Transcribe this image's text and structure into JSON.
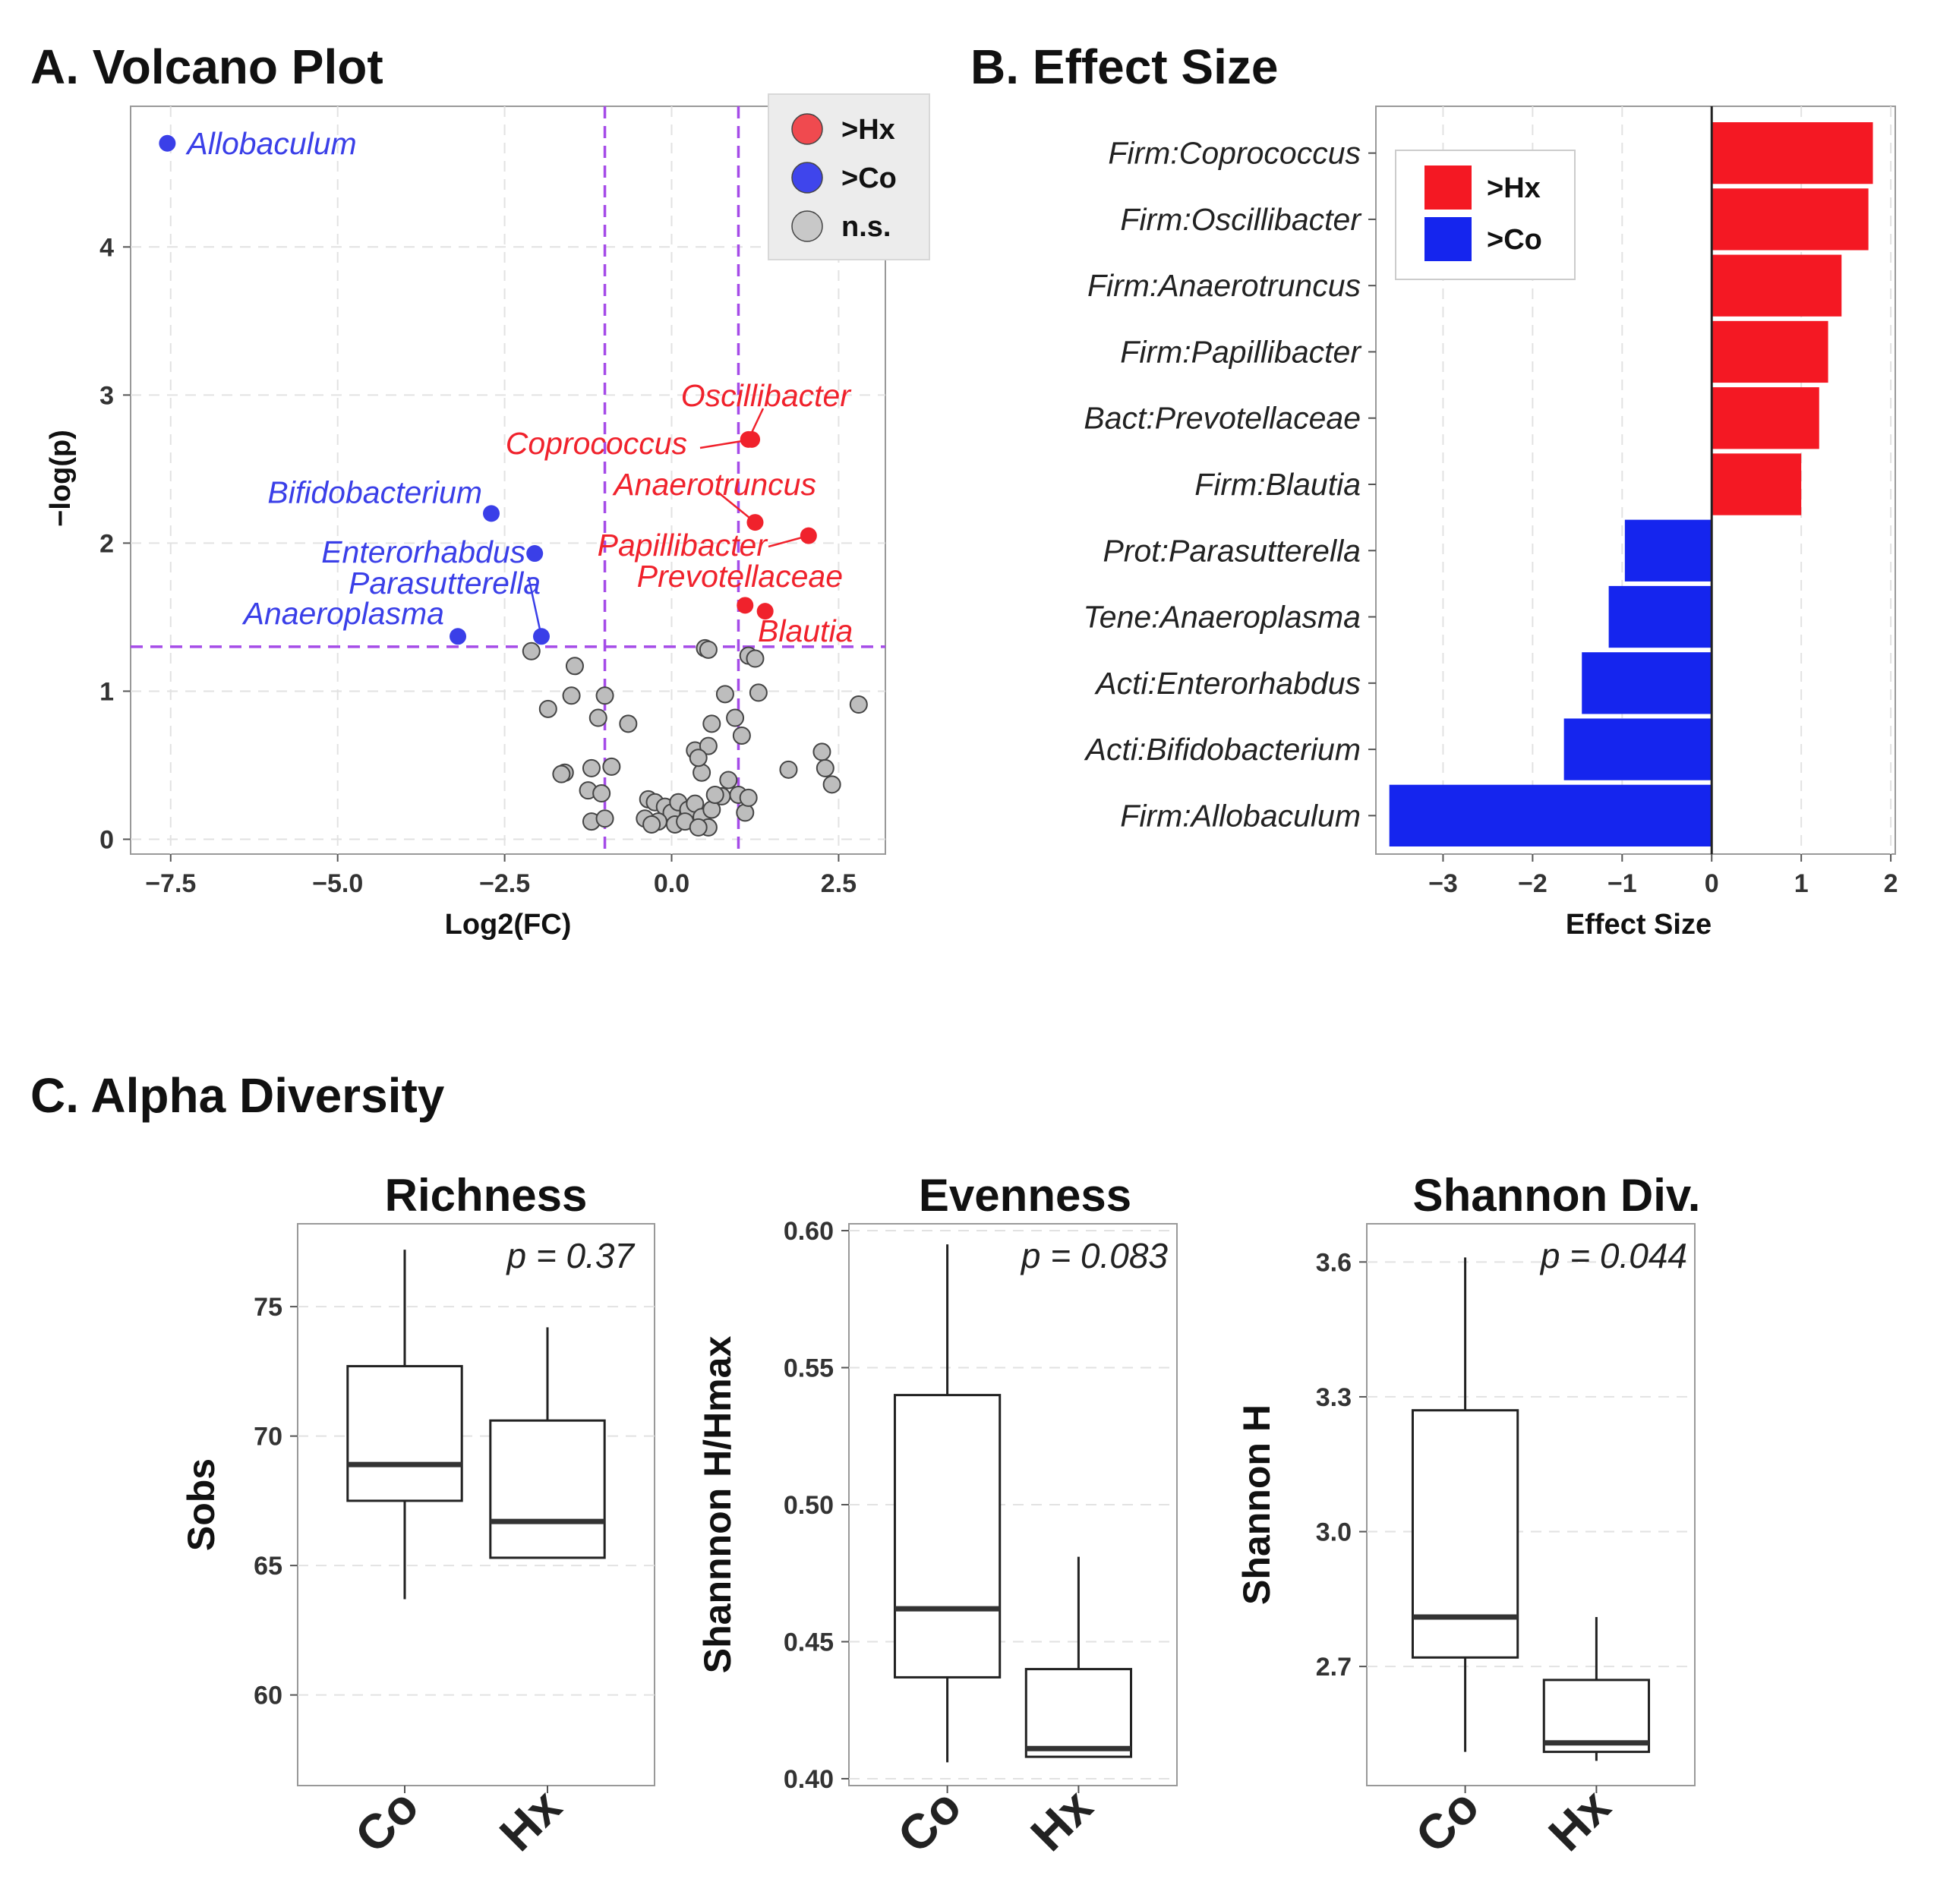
{
  "chart_data": [
    {
      "id": "volcano",
      "type": "scatter",
      "title": "A. Volcano Plot",
      "xlabel": "Log2(FC)",
      "ylabel": "−log(p)",
      "xlim": [
        -8.1,
        3.2
      ],
      "ylim": [
        -0.1,
        4.95
      ],
      "xticks": [
        -7.5,
        -5.0,
        -2.5,
        0.0,
        2.5
      ],
      "xtick_labels": [
        "−7.5",
        "−5.0",
        "−2.5",
        "0.0",
        "2.5"
      ],
      "yticks": [
        0,
        1,
        2,
        3,
        4
      ],
      "ytick_labels": [
        "0",
        "1",
        "2",
        "3",
        "4"
      ],
      "thresholds": {
        "fc": [
          -1,
          1
        ],
        "p": 1.3
      },
      "colors": {
        "hx": "#f0222c",
        "co": "#3a3fe8",
        "ns": "#bdbdbd",
        "threshold": "#a54be8"
      },
      "legend": {
        "position": "top-right",
        "entries": [
          {
            "label": ">Hx",
            "group": "hx"
          },
          {
            "label": ">Co",
            "group": "co"
          },
          {
            "label": "n.s.",
            "group": "ns"
          }
        ]
      },
      "labeled_points": [
        {
          "name": "Allobaculum",
          "x": -7.55,
          "y": 4.7,
          "group": "co"
        },
        {
          "name": "Bifidobacterium",
          "x": -2.7,
          "y": 2.2,
          "group": "co"
        },
        {
          "name": "Enterorhabdus",
          "x": -2.05,
          "y": 1.93,
          "group": "co"
        },
        {
          "name": "Parasutterella",
          "x": -1.95,
          "y": 1.37,
          "group": "co"
        },
        {
          "name": "Anaeroplasma",
          "x": -3.2,
          "y": 1.37,
          "group": "co"
        },
        {
          "name": "Oscillibacter",
          "x": 1.15,
          "y": 2.7,
          "group": "hx"
        },
        {
          "name": "Coprococcus",
          "x": 1.2,
          "y": 2.7,
          "group": "hx"
        },
        {
          "name": "Anaerotruncus",
          "x": 1.25,
          "y": 2.14,
          "group": "hx"
        },
        {
          "name": "Papillibacter",
          "x": 2.05,
          "y": 2.05,
          "group": "hx"
        },
        {
          "name": "Prevotellaceae",
          "x": 1.1,
          "y": 1.58,
          "group": "hx"
        },
        {
          "name": "Blautia",
          "x": 1.4,
          "y": 1.54,
          "group": "hx"
        }
      ],
      "ns_points": [
        [
          -2.1,
          1.27
        ],
        [
          -1.45,
          1.17
        ],
        [
          -1.5,
          0.97
        ],
        [
          -1.85,
          0.88
        ],
        [
          -1.0,
          0.97
        ],
        [
          -1.1,
          0.82
        ],
        [
          -0.65,
          0.78
        ],
        [
          -1.6,
          0.45
        ],
        [
          -1.65,
          0.44
        ],
        [
          -1.2,
          0.48
        ],
        [
          -0.9,
          0.49
        ],
        [
          -1.25,
          0.33
        ],
        [
          -1.05,
          0.31
        ],
        [
          -1.2,
          0.12
        ],
        [
          -1.0,
          0.14
        ],
        [
          -0.35,
          0.27
        ],
        [
          -0.25,
          0.25
        ],
        [
          -0.1,
          0.22
        ],
        [
          0.0,
          0.18
        ],
        [
          0.1,
          0.25
        ],
        [
          0.25,
          0.2
        ],
        [
          0.35,
          0.24
        ],
        [
          -0.4,
          0.14
        ],
        [
          -0.2,
          0.12
        ],
        [
          0.05,
          0.1
        ],
        [
          0.2,
          0.12
        ],
        [
          0.45,
          0.15
        ],
        [
          0.55,
          0.08
        ],
        [
          -0.3,
          0.1
        ],
        [
          0.4,
          0.08
        ],
        [
          0.6,
          0.2
        ],
        [
          0.75,
          0.29
        ],
        [
          0.65,
          0.3
        ],
        [
          0.85,
          0.4
        ],
        [
          0.45,
          0.45
        ],
        [
          0.35,
          0.6
        ],
        [
          0.55,
          0.63
        ],
        [
          0.4,
          0.55
        ],
        [
          0.6,
          0.78
        ],
        [
          0.8,
          0.98
        ],
        [
          0.95,
          0.82
        ],
        [
          1.05,
          0.7
        ],
        [
          1.3,
          0.99
        ],
        [
          1.0,
          0.3
        ],
        [
          1.1,
          0.18
        ],
        [
          1.15,
          0.28
        ],
        [
          0.5,
          1.29
        ],
        [
          0.55,
          1.28
        ],
        [
          1.15,
          1.24
        ],
        [
          1.25,
          1.22
        ],
        [
          1.75,
          0.47
        ],
        [
          2.25,
          0.59
        ],
        [
          2.3,
          0.48
        ],
        [
          2.4,
          0.37
        ],
        [
          2.8,
          0.91
        ]
      ]
    },
    {
      "id": "effect",
      "type": "bar",
      "orientation": "horizontal",
      "title": "B. Effect Size",
      "xlabel": "Effect Size",
      "xlim": [
        -3.75,
        2.05
      ],
      "xticks": [
        -3,
        -2,
        -1,
        0,
        1,
        2
      ],
      "xtick_labels": [
        "−3",
        "−2",
        "−1",
        "0",
        "1",
        "2"
      ],
      "colors": {
        "hx": "#f41823",
        "co": "#1525ee"
      },
      "legend": {
        "position": "top-left",
        "entries": [
          {
            "label": ">Hx",
            "group": "hx"
          },
          {
            "label": ">Co",
            "group": "co"
          }
        ]
      },
      "categories": [
        "Firm:Coprococcus",
        "Firm:Oscillibacter",
        "Firm:Anaerotruncus",
        "Firm:Papillibacter",
        "Bact:Prevotellaceae",
        "Firm:Blautia",
        "Prot:Parasutterella",
        "Tene:Anaeroplasma",
        "Acti:Enterorhabdus",
        "Acti:Bifidobacterium",
        "Firm:Allobaculum"
      ],
      "values": [
        1.8,
        1.75,
        1.45,
        1.3,
        1.2,
        1.0,
        -0.97,
        -1.15,
        -1.45,
        -1.65,
        -3.6
      ],
      "groups": [
        "hx",
        "hx",
        "hx",
        "hx",
        "hx",
        "hx",
        "co",
        "co",
        "co",
        "co",
        "co"
      ]
    },
    {
      "id": "richness",
      "type": "boxplot",
      "title": "Richness",
      "ylabel": "Sobs",
      "pvalue": "p = 0.37",
      "ylim": [
        56.5,
        78.2
      ],
      "yticks": [
        60,
        65,
        70,
        75
      ],
      "ytick_labels": [
        "60",
        "65",
        "70",
        "75"
      ],
      "categories": [
        "Co",
        "Hx"
      ],
      "boxes": [
        {
          "min": 63.7,
          "q1": 67.5,
          "median": 68.9,
          "q3": 72.7,
          "max": 77.2
        },
        {
          "min": 65.3,
          "q1": 65.3,
          "median": 66.7,
          "q3": 70.6,
          "max": 74.2
        }
      ]
    },
    {
      "id": "evenness",
      "type": "boxplot",
      "title": "Evenness",
      "ylabel": "Shannnon H/Hmax",
      "pvalue": "p = 0.083",
      "ylim": [
        0.3975,
        0.6025
      ],
      "yticks": [
        0.4,
        0.45,
        0.5,
        0.55,
        0.6
      ],
      "ytick_labels": [
        "0.40",
        "0.45",
        "0.50",
        "0.55",
        "0.60"
      ],
      "categories": [
        "Co",
        "Hx"
      ],
      "boxes": [
        {
          "min": 0.406,
          "q1": 0.437,
          "median": 0.462,
          "q3": 0.54,
          "max": 0.595
        },
        {
          "min": 0.408,
          "q1": 0.408,
          "median": 0.411,
          "q3": 0.44,
          "max": 0.481
        }
      ]
    },
    {
      "id": "shannon",
      "type": "boxplot",
      "title": "Shannon Div.",
      "ylabel": "Shannon H",
      "pvalue": "p = 0.044",
      "ylim": [
        2.435,
        3.685
      ],
      "yticks": [
        2.7,
        3.0,
        3.3,
        3.6
      ],
      "ytick_labels": [
        "2.7",
        "3.0",
        "3.3",
        "3.6"
      ],
      "categories": [
        "Co",
        "Hx"
      ],
      "boxes": [
        {
          "min": 2.51,
          "q1": 2.72,
          "median": 2.81,
          "q3": 3.27,
          "max": 3.61
        },
        {
          "min": 2.49,
          "q1": 2.51,
          "median": 2.53,
          "q3": 2.67,
          "max": 2.81
        }
      ]
    }
  ],
  "section_c_title": "C. Alpha Diversity"
}
